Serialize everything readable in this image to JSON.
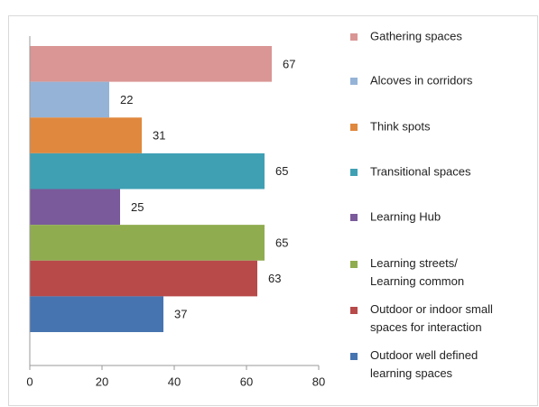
{
  "chart_data": {
    "type": "bar",
    "orientation": "horizontal",
    "categories": [
      "Gathering spaces",
      "Alcoves in corridors",
      "Think spots",
      "Transitional spaces",
      "Learning Hub",
      "Learning streets/\nLearning common",
      "Outdoor or indoor small\nspaces for interaction",
      "Outdoor well defined\nlearning spaces"
    ],
    "values": [
      67,
      22,
      31,
      65,
      25,
      65,
      63,
      37
    ],
    "colors": [
      "#d99694",
      "#95b3d7",
      "#e0883e",
      "#3fa0b4",
      "#7a5a9a",
      "#8fac4f",
      "#b84a4a",
      "#4674b0"
    ],
    "xlim": [
      0,
      80
    ],
    "xticks": [
      0,
      20,
      40,
      60,
      80
    ],
    "legend": "right"
  }
}
